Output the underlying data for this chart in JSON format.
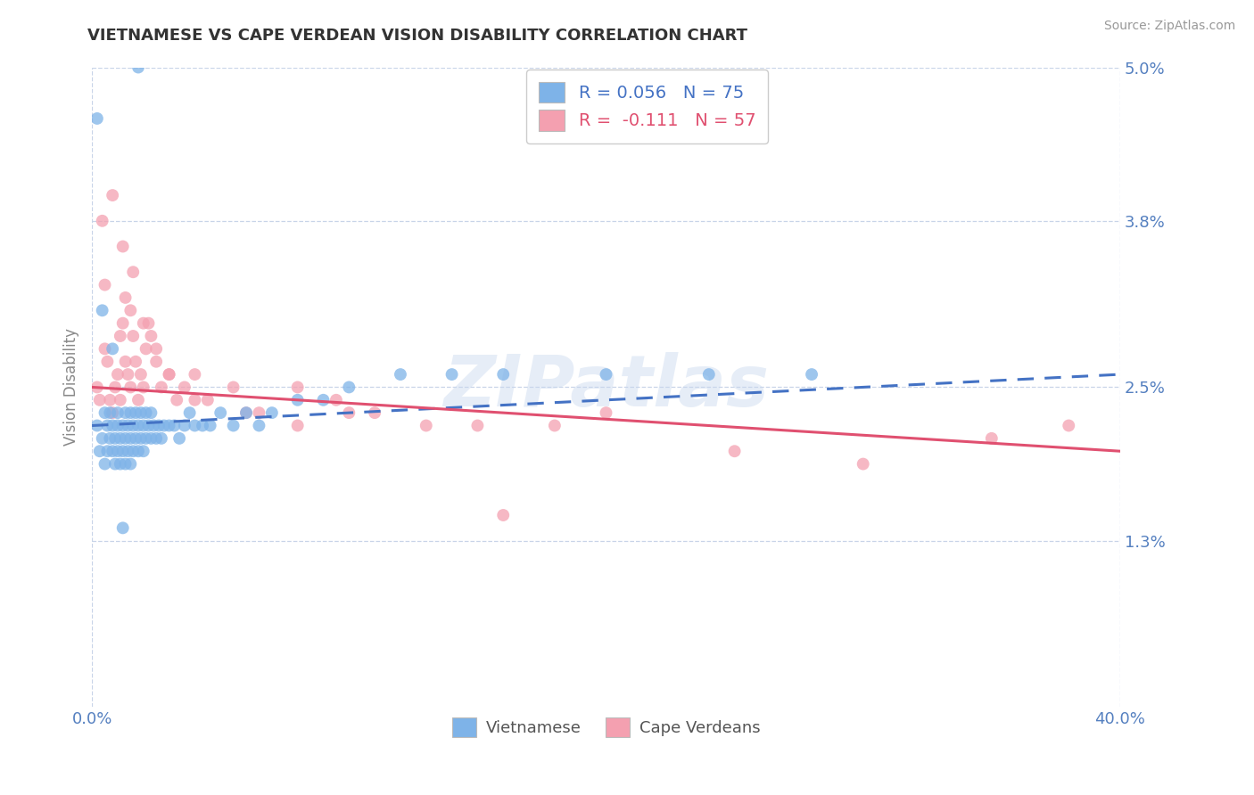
{
  "title": "VIETNAMESE VS CAPE VERDEAN VISION DISABILITY CORRELATION CHART",
  "source": "Source: ZipAtlas.com",
  "ylabel": "Vision Disability",
  "x_min": 0.0,
  "x_max": 0.4,
  "y_min": 0.0,
  "y_max": 0.05,
  "x_ticks": [
    0.0,
    0.4
  ],
  "x_tick_labels": [
    "0.0%",
    "40.0%"
  ],
  "y_ticks": [
    0.013,
    0.025,
    0.038,
    0.05
  ],
  "y_tick_labels": [
    "1.3%",
    "2.5%",
    "3.8%",
    "5.0%"
  ],
  "vietnamese_color": "#7EB3E8",
  "cape_verdean_color": "#F4A0B0",
  "trend_viet_color": "#4472C4",
  "trend_cape_color": "#E05070",
  "R_viet": 0.056,
  "N_viet": 75,
  "R_cape": -0.111,
  "N_cape": 57,
  "background_color": "#FFFFFF",
  "grid_color": "#C8D4E8",
  "title_color": "#333333",
  "axis_label_color": "#5580C0",
  "watermark": "ZIPatlas",
  "viet_trend_x0": 0.0,
  "viet_trend_y0": 0.022,
  "viet_trend_x1": 0.4,
  "viet_trend_y1": 0.026,
  "cape_trend_x0": 0.0,
  "cape_trend_y0": 0.025,
  "cape_trend_x1": 0.4,
  "cape_trend_y1": 0.02,
  "viet_scatter_x": [
    0.002,
    0.003,
    0.004,
    0.005,
    0.005,
    0.006,
    0.006,
    0.007,
    0.007,
    0.008,
    0.008,
    0.009,
    0.009,
    0.01,
    0.01,
    0.01,
    0.011,
    0.011,
    0.012,
    0.012,
    0.013,
    0.013,
    0.013,
    0.014,
    0.014,
    0.015,
    0.015,
    0.015,
    0.016,
    0.016,
    0.017,
    0.017,
    0.018,
    0.018,
    0.019,
    0.019,
    0.02,
    0.02,
    0.021,
    0.021,
    0.022,
    0.023,
    0.023,
    0.024,
    0.025,
    0.026,
    0.027,
    0.028,
    0.03,
    0.032,
    0.034,
    0.036,
    0.038,
    0.04,
    0.043,
    0.046,
    0.05,
    0.055,
    0.06,
    0.065,
    0.07,
    0.08,
    0.09,
    0.1,
    0.12,
    0.14,
    0.16,
    0.2,
    0.24,
    0.28,
    0.002,
    0.004,
    0.008,
    0.012,
    0.018
  ],
  "viet_scatter_y": [
    0.022,
    0.02,
    0.021,
    0.019,
    0.023,
    0.02,
    0.022,
    0.021,
    0.023,
    0.02,
    0.022,
    0.021,
    0.019,
    0.022,
    0.02,
    0.023,
    0.021,
    0.019,
    0.022,
    0.02,
    0.021,
    0.023,
    0.019,
    0.022,
    0.02,
    0.021,
    0.023,
    0.019,
    0.022,
    0.02,
    0.021,
    0.023,
    0.022,
    0.02,
    0.021,
    0.023,
    0.022,
    0.02,
    0.021,
    0.023,
    0.022,
    0.021,
    0.023,
    0.022,
    0.021,
    0.022,
    0.021,
    0.022,
    0.022,
    0.022,
    0.021,
    0.022,
    0.023,
    0.022,
    0.022,
    0.022,
    0.023,
    0.022,
    0.023,
    0.022,
    0.023,
    0.024,
    0.024,
    0.025,
    0.026,
    0.026,
    0.026,
    0.026,
    0.026,
    0.026,
    0.046,
    0.031,
    0.028,
    0.014,
    0.05
  ],
  "cape_scatter_x": [
    0.002,
    0.003,
    0.005,
    0.005,
    0.006,
    0.007,
    0.008,
    0.009,
    0.01,
    0.011,
    0.011,
    0.012,
    0.013,
    0.013,
    0.014,
    0.015,
    0.015,
    0.016,
    0.017,
    0.018,
    0.019,
    0.02,
    0.021,
    0.022,
    0.023,
    0.025,
    0.027,
    0.03,
    0.033,
    0.036,
    0.04,
    0.045,
    0.055,
    0.065,
    0.08,
    0.095,
    0.11,
    0.13,
    0.15,
    0.18,
    0.004,
    0.008,
    0.012,
    0.016,
    0.02,
    0.025,
    0.03,
    0.04,
    0.06,
    0.08,
    0.1,
    0.3,
    0.25,
    0.35,
    0.38,
    0.2,
    0.16
  ],
  "cape_scatter_y": [
    0.025,
    0.024,
    0.033,
    0.028,
    0.027,
    0.024,
    0.023,
    0.025,
    0.026,
    0.024,
    0.029,
    0.03,
    0.027,
    0.032,
    0.026,
    0.025,
    0.031,
    0.029,
    0.027,
    0.024,
    0.026,
    0.025,
    0.028,
    0.03,
    0.029,
    0.027,
    0.025,
    0.026,
    0.024,
    0.025,
    0.026,
    0.024,
    0.025,
    0.023,
    0.025,
    0.024,
    0.023,
    0.022,
    0.022,
    0.022,
    0.038,
    0.04,
    0.036,
    0.034,
    0.03,
    0.028,
    0.026,
    0.024,
    0.023,
    0.022,
    0.023,
    0.019,
    0.02,
    0.021,
    0.022,
    0.023,
    0.015
  ]
}
